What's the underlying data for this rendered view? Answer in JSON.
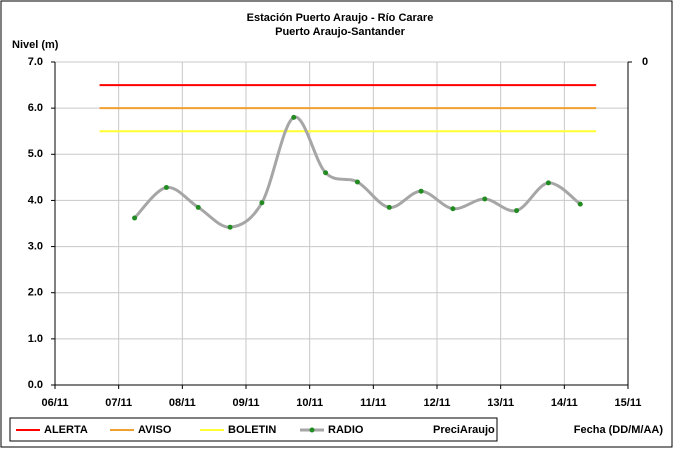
{
  "chart_data": {
    "type": "line",
    "title": "Estación Puerto Araujo - Río Carare",
    "subtitle": "Puerto Araujo-Santander",
    "y_label": "Nivel (m)",
    "x_label": "Fecha (DD/M/AA)",
    "xlim": [
      6,
      15
    ],
    "xticks": [
      {
        "value": 6,
        "label": "06/11"
      },
      {
        "value": 7,
        "label": "07/11"
      },
      {
        "value": 8,
        "label": "08/11"
      },
      {
        "value": 9,
        "label": "09/11"
      },
      {
        "value": 10,
        "label": "10/11"
      },
      {
        "value": 11,
        "label": "11/11"
      },
      {
        "value": 12,
        "label": "12/11"
      },
      {
        "value": 13,
        "label": "13/11"
      },
      {
        "value": 14,
        "label": "14/11"
      },
      {
        "value": 15,
        "label": "15/11"
      }
    ],
    "ylim": [
      0,
      7
    ],
    "yticks": [
      {
        "value": 0,
        "label": "0.0"
      },
      {
        "value": 1,
        "label": "1.0"
      },
      {
        "value": 2,
        "label": "2.0"
      },
      {
        "value": 3,
        "label": "3.0"
      },
      {
        "value": 4,
        "label": "4.0"
      },
      {
        "value": 5,
        "label": "5.0"
      },
      {
        "value": 6,
        "label": "6.0"
      },
      {
        "value": 7,
        "label": "7.0"
      }
    ],
    "y2lim": [
      1,
      0
    ],
    "y2ticks": [
      0
    ],
    "grid": true,
    "series": [
      {
        "name": "ALERTA",
        "color": "#ff0000",
        "x": [
          6.7,
          14.5
        ],
        "values": [
          6.5,
          6.5
        ]
      },
      {
        "name": "AVISO",
        "color": "#f0a030",
        "x": [
          6.7,
          14.5
        ],
        "values": [
          6.0,
          6.0
        ]
      },
      {
        "name": "BOLETIN",
        "color": "#ffff33",
        "x": [
          6.7,
          14.5
        ],
        "values": [
          5.5,
          5.5
        ]
      },
      {
        "name": "RADIO",
        "color": "#a6a6a6",
        "marker_color": "#228b22",
        "smooth": true,
        "x": [
          7.25,
          7.75,
          8.25,
          8.75,
          9.25,
          9.75,
          10.25,
          10.75,
          11.25,
          11.75,
          12.25,
          12.75,
          13.25,
          13.75,
          14.25
        ],
        "values": [
          3.62,
          4.28,
          3.85,
          3.42,
          3.95,
          5.8,
          4.6,
          4.4,
          3.85,
          4.2,
          3.82,
          4.03,
          3.78,
          4.38,
          3.92
        ]
      },
      {
        "name": "PreciAraujo",
        "axis": "y2",
        "x": [],
        "values": []
      }
    ]
  }
}
